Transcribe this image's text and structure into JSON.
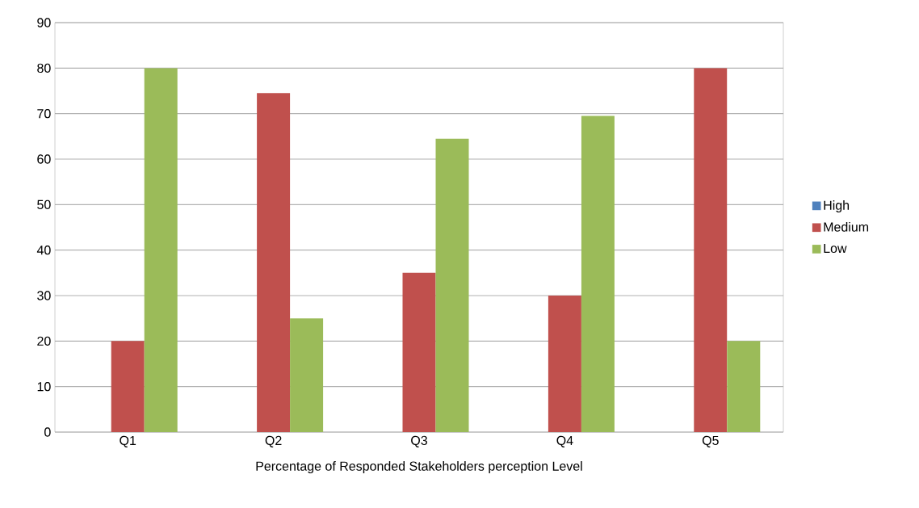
{
  "chart_data": {
    "type": "bar",
    "xlabel": "Percentage of Responded Stakeholders perception Level",
    "categories": [
      "Q1",
      "Q2",
      "Q3",
      "Q4",
      "Q5"
    ],
    "series": [
      {
        "name": "High",
        "color": "#4f81bd",
        "values": [
          0,
          0,
          0,
          0,
          0
        ]
      },
      {
        "name": "Medium",
        "color": "#c0504d",
        "values": [
          20,
          74.5,
          35,
          30,
          80
        ]
      },
      {
        "name": "Low",
        "color": "#9bbb59",
        "values": [
          80,
          25,
          64.5,
          69.5,
          20
        ]
      }
    ],
    "ylim": [
      0,
      90
    ],
    "yticks": [
      0,
      10,
      20,
      30,
      40,
      50,
      60,
      70,
      80,
      90
    ],
    "grid": "y",
    "legend": "right"
  }
}
